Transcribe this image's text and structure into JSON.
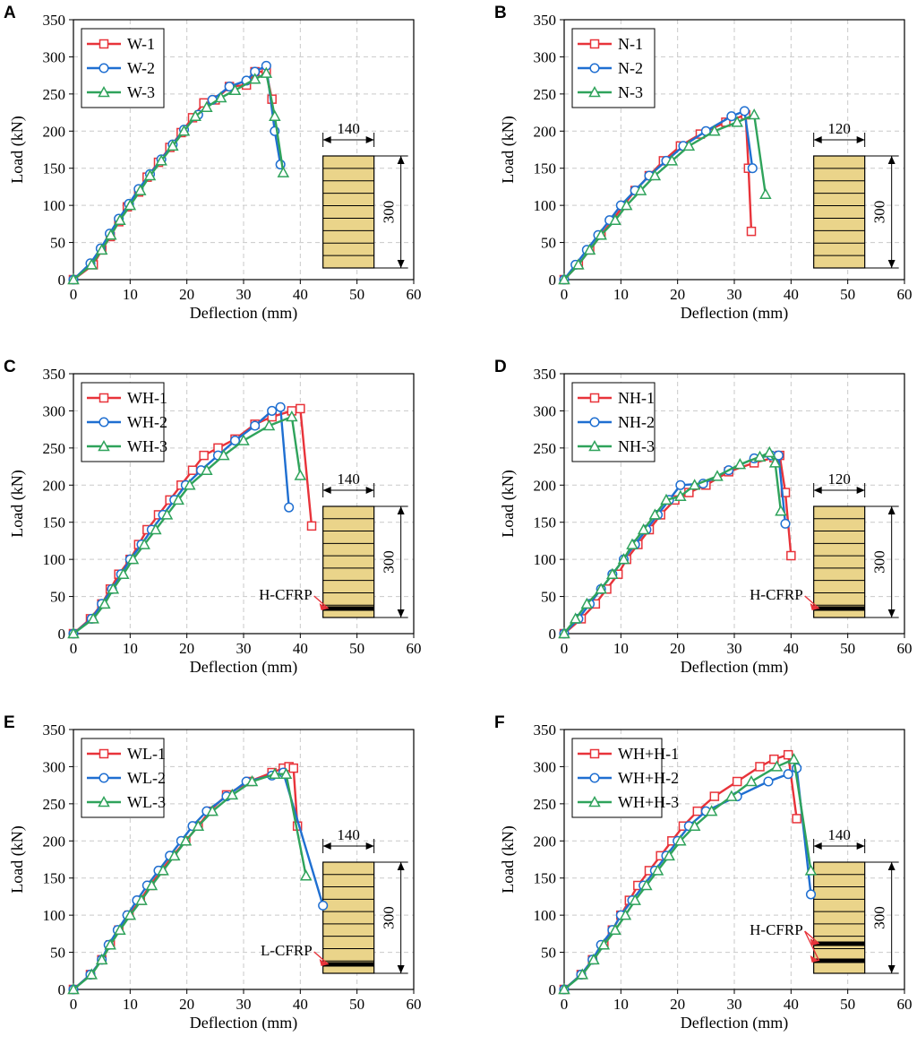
{
  "colors": {
    "series1": "#e8333a",
    "series2": "#1f6fd1",
    "series3": "#2fa35b",
    "beam_fill": "#ead48a",
    "grid": "#c9c9c9"
  },
  "chart_data": [
    {
      "id": "A",
      "panel_label": "A",
      "type": "line",
      "xlabel": "Deflection (mm)",
      "ylabel": "Load (kN)",
      "xlim": [
        0,
        60
      ],
      "ylim": [
        0,
        350
      ],
      "xticks": [
        "0",
        "10",
        "20",
        "30",
        "40",
        "50",
        "60"
      ],
      "yticks": [
        "0",
        "50",
        "100",
        "150",
        "200",
        "250",
        "300",
        "350"
      ],
      "grid": true,
      "legend_position": "top-left",
      "inset": {
        "width_label": "140",
        "height_label": "300",
        "cfrp_label": "",
        "cfrp_layers": 0
      },
      "series": [
        {
          "name": "W-1",
          "marker": "square",
          "x": [
            0,
            3.5,
            5,
            6.5,
            8,
            9.5,
            11.5,
            13,
            15,
            17,
            19,
            21,
            23,
            25,
            27.5,
            30.5,
            32,
            34,
            35
          ],
          "y": [
            0,
            20,
            40,
            58,
            78,
            98,
            118,
            138,
            158,
            178,
            198,
            218,
            238,
            242,
            260,
            262,
            280,
            280,
            243
          ]
        },
        {
          "name": "W-2",
          "marker": "circle",
          "x": [
            0,
            3,
            4.8,
            6.4,
            8,
            9.8,
            11.5,
            13.5,
            15.5,
            17.5,
            19.5,
            22,
            24.5,
            27.5,
            30.5,
            32,
            34,
            35.5,
            36.5
          ],
          "y": [
            0,
            22,
            42,
            62,
            82,
            102,
            122,
            142,
            162,
            182,
            202,
            222,
            242,
            260,
            268,
            280,
            288,
            200,
            155
          ]
        },
        {
          "name": "W-3",
          "marker": "triangle",
          "x": [
            0,
            3.2,
            5,
            6.6,
            8.2,
            10,
            11.8,
            13.5,
            15.5,
            17.5,
            19.5,
            21.5,
            23.5,
            26,
            28.5,
            32,
            34,
            35.5,
            37
          ],
          "y": [
            0,
            20,
            40,
            60,
            80,
            100,
            120,
            140,
            160,
            180,
            200,
            220,
            232,
            245,
            255,
            270,
            278,
            220,
            144
          ]
        }
      ]
    },
    {
      "id": "B",
      "panel_label": "B",
      "type": "line",
      "xlabel": "Deflection (mm)",
      "ylabel": "Load (kN)",
      "xlim": [
        0,
        60
      ],
      "ylim": [
        0,
        350
      ],
      "xticks": [
        "0",
        "10",
        "20",
        "30",
        "40",
        "50",
        "60"
      ],
      "yticks": [
        "0",
        "50",
        "100",
        "150",
        "200",
        "250",
        "300",
        "350"
      ],
      "grid": true,
      "legend_position": "top-left",
      "inset": {
        "width_label": "120",
        "height_label": "300",
        "cfrp_label": "",
        "cfrp_layers": 0
      },
      "series": [
        {
          "name": "N-1",
          "marker": "square",
          "x": [
            0,
            2.5,
            4.5,
            6.5,
            8.5,
            10.5,
            12.5,
            15,
            17.5,
            20.5,
            24,
            28.5,
            32,
            32.5,
            33
          ],
          "y": [
            0,
            20,
            40,
            60,
            80,
            100,
            120,
            140,
            160,
            180,
            196,
            212,
            222,
            150,
            65
          ]
        },
        {
          "name": "N-2",
          "marker": "circle",
          "x": [
            0,
            2,
            4,
            6,
            8,
            10,
            12.5,
            15,
            18,
            21,
            25,
            29.5,
            31.8,
            33.2
          ],
          "y": [
            0,
            20,
            40,
            60,
            80,
            100,
            120,
            140,
            160,
            180,
            200,
            220,
            227,
            150
          ]
        },
        {
          "name": "N-3",
          "marker": "triangle",
          "x": [
            0,
            2.5,
            4.5,
            6.5,
            9,
            11,
            13.5,
            16,
            19,
            22,
            26.5,
            30.5,
            33.5,
            35.5
          ],
          "y": [
            0,
            20,
            40,
            60,
            80,
            100,
            120,
            140,
            160,
            180,
            200,
            212,
            222,
            115
          ]
        }
      ]
    },
    {
      "id": "C",
      "panel_label": "C",
      "type": "line",
      "xlabel": "Deflection (mm)",
      "ylabel": "Load (kN)",
      "xlim": [
        0,
        60
      ],
      "ylim": [
        0,
        350
      ],
      "xticks": [
        "0",
        "10",
        "20",
        "30",
        "40",
        "50",
        "60"
      ],
      "yticks": [
        "0",
        "50",
        "100",
        "150",
        "200",
        "250",
        "300",
        "350"
      ],
      "grid": true,
      "legend_position": "top-left",
      "inset": {
        "width_label": "140",
        "height_label": "300",
        "cfrp_label": "H-CFRP",
        "cfrp_layers": 1
      },
      "series": [
        {
          "name": "WH-1",
          "marker": "square",
          "x": [
            0,
            3,
            5,
            6.5,
            8,
            10,
            11.5,
            13,
            15,
            17,
            19,
            21,
            23,
            25.5,
            28.5,
            32,
            35,
            38.5,
            40,
            42
          ],
          "y": [
            0,
            20,
            40,
            60,
            80,
            100,
            120,
            140,
            160,
            180,
            200,
            220,
            240,
            250,
            262,
            282,
            292,
            300,
            303,
            145
          ]
        },
        {
          "name": "WH-2",
          "marker": "circle",
          "x": [
            0,
            3.2,
            5,
            6.8,
            8.4,
            10,
            12,
            13.8,
            15.8,
            17.8,
            19.8,
            22.5,
            25.5,
            28.5,
            32,
            35,
            36.5,
            38
          ],
          "y": [
            0,
            20,
            40,
            60,
            80,
            100,
            120,
            140,
            160,
            180,
            200,
            220,
            240,
            260,
            280,
            300,
            305,
            170
          ]
        },
        {
          "name": "WH-3",
          "marker": "triangle",
          "x": [
            0,
            3.5,
            5.5,
            7,
            8.8,
            10.5,
            12.5,
            14.5,
            16.5,
            18.5,
            20.5,
            23.5,
            26.5,
            30,
            34.5,
            38.5,
            40
          ],
          "y": [
            0,
            20,
            40,
            60,
            80,
            100,
            120,
            140,
            160,
            180,
            200,
            220,
            240,
            260,
            280,
            292,
            213
          ]
        }
      ]
    },
    {
      "id": "D",
      "panel_label": "D",
      "type": "line",
      "xlabel": "Deflection (mm)",
      "ylabel": "Load (kN)",
      "xlim": [
        0,
        60
      ],
      "ylim": [
        0,
        350
      ],
      "xticks": [
        "0",
        "10",
        "20",
        "30",
        "40",
        "50",
        "60"
      ],
      "yticks": [
        "0",
        "50",
        "100",
        "150",
        "200",
        "250",
        "300",
        "350"
      ],
      "grid": true,
      "legend_position": "top-left",
      "inset": {
        "width_label": "120",
        "height_label": "300",
        "cfrp_label": "H-CFRP",
        "cfrp_layers": 1
      },
      "series": [
        {
          "name": "NH-1",
          "marker": "square",
          "x": [
            0,
            3,
            5.5,
            7.5,
            9.5,
            11,
            13,
            15,
            17,
            19.5,
            22,
            25,
            29,
            33.5,
            37,
            38,
            39,
            40
          ],
          "y": [
            0,
            20,
            40,
            60,
            80,
            100,
            120,
            140,
            160,
            180,
            190,
            200,
            218,
            230,
            237,
            240,
            190,
            105
          ]
        },
        {
          "name": "NH-2",
          "marker": "circle",
          "x": [
            0,
            2.5,
            4.5,
            6.5,
            8.5,
            10.5,
            12.5,
            14.5,
            16.5,
            18.5,
            20.5,
            24.5,
            29,
            33.5,
            36.5,
            37.8,
            39
          ],
          "y": [
            0,
            20,
            40,
            60,
            80,
            100,
            120,
            140,
            160,
            180,
            200,
            202,
            220,
            236,
            240,
            240,
            148
          ]
        },
        {
          "name": "NH-3",
          "marker": "triangle",
          "x": [
            0,
            2,
            4,
            6.5,
            8.5,
            10.5,
            12,
            14,
            16,
            18,
            20.5,
            23,
            27,
            31,
            34.5,
            36.2,
            37.2,
            38.2
          ],
          "y": [
            0,
            20,
            40,
            60,
            80,
            100,
            120,
            140,
            160,
            180,
            185,
            200,
            212,
            228,
            238,
            244,
            230,
            165
          ]
        }
      ]
    },
    {
      "id": "E",
      "panel_label": "E",
      "type": "line",
      "xlabel": "Deflection (mm)",
      "ylabel": "Load (kN)",
      "xlim": [
        0,
        60
      ],
      "ylim": [
        0,
        350
      ],
      "xticks": [
        "0",
        "10",
        "20",
        "30",
        "40",
        "50",
        "60"
      ],
      "yticks": [
        "0",
        "50",
        "100",
        "150",
        "200",
        "250",
        "300",
        "350"
      ],
      "grid": true,
      "legend_position": "top-left",
      "inset": {
        "width_label": "140",
        "height_label": "300",
        "cfrp_label": "L-CFRP",
        "cfrp_layers": 1
      },
      "series": [
        {
          "name": "WL-1",
          "marker": "square",
          "x": [
            0,
            3,
            5,
            6.5,
            8,
            9.8,
            11.8,
            13.5,
            15.5,
            17.5,
            19.8,
            22,
            24,
            27,
            31,
            35,
            37,
            38,
            38.8,
            39.5
          ],
          "y": [
            0,
            20,
            40,
            60,
            80,
            100,
            120,
            140,
            160,
            180,
            200,
            220,
            240,
            262,
            280,
            292,
            298,
            300,
            298,
            220
          ]
        },
        {
          "name": "WL-2",
          "marker": "circle",
          "x": [
            0,
            3,
            5,
            6.2,
            7.8,
            9.5,
            11.2,
            13,
            15,
            17,
            19,
            21,
            23.5,
            27,
            30.5,
            35,
            37,
            44
          ],
          "y": [
            0,
            20,
            40,
            60,
            80,
            100,
            120,
            140,
            160,
            180,
            200,
            220,
            240,
            260,
            280,
            288,
            292,
            113
          ]
        },
        {
          "name": "WL-3",
          "marker": "triangle",
          "x": [
            0,
            3.2,
            5,
            6.5,
            8.2,
            10,
            12,
            13.8,
            15.8,
            17.8,
            19.8,
            22,
            24.5,
            28,
            31.5,
            35.5,
            37.5,
            41
          ],
          "y": [
            0,
            20,
            40,
            60,
            80,
            100,
            120,
            140,
            160,
            180,
            200,
            220,
            240,
            262,
            280,
            290,
            290,
            153
          ]
        }
      ]
    },
    {
      "id": "F",
      "panel_label": "F",
      "type": "line",
      "xlabel": "Deflection (mm)",
      "ylabel": "Load (kN)",
      "xlim": [
        0,
        60
      ],
      "ylim": [
        0,
        350
      ],
      "xticks": [
        "0",
        "10",
        "20",
        "30",
        "40",
        "50",
        "60"
      ],
      "yticks": [
        "0",
        "50",
        "100",
        "150",
        "200",
        "250",
        "300",
        "350"
      ],
      "grid": true,
      "legend_position": "top-left",
      "inset": {
        "width_label": "140",
        "height_label": "300",
        "cfrp_label": "H-CFRP",
        "cfrp_layers": 2
      },
      "series": [
        {
          "name": "WH+H-1",
          "marker": "square",
          "x": [
            0,
            3,
            5,
            7,
            8.5,
            10,
            11.5,
            13,
            15,
            17,
            19,
            21,
            23.5,
            26.5,
            30.5,
            34.5,
            37,
            39.5,
            41
          ],
          "y": [
            0,
            20,
            40,
            60,
            80,
            100,
            120,
            140,
            160,
            180,
            200,
            220,
            240,
            260,
            280,
            300,
            310,
            316,
            230
          ]
        },
        {
          "name": "WH+H-2",
          "marker": "circle",
          "x": [
            0,
            3,
            5,
            6.5,
            8.5,
            10,
            12,
            14,
            16,
            18,
            20,
            22,
            25,
            30.5,
            36,
            39.5,
            41,
            43.5
          ],
          "y": [
            0,
            20,
            40,
            60,
            80,
            100,
            120,
            140,
            160,
            180,
            200,
            220,
            240,
            260,
            280,
            290,
            298,
            128
          ]
        },
        {
          "name": "WH+H-3",
          "marker": "triangle",
          "x": [
            0,
            3.2,
            5.2,
            7,
            9,
            10.8,
            12.5,
            14.5,
            16.5,
            18.5,
            20.5,
            23,
            26,
            29.5,
            33,
            37.5,
            40.5,
            43.5
          ],
          "y": [
            0,
            20,
            40,
            60,
            80,
            100,
            120,
            140,
            160,
            180,
            200,
            220,
            240,
            260,
            280,
            300,
            310,
            160
          ]
        }
      ]
    }
  ]
}
